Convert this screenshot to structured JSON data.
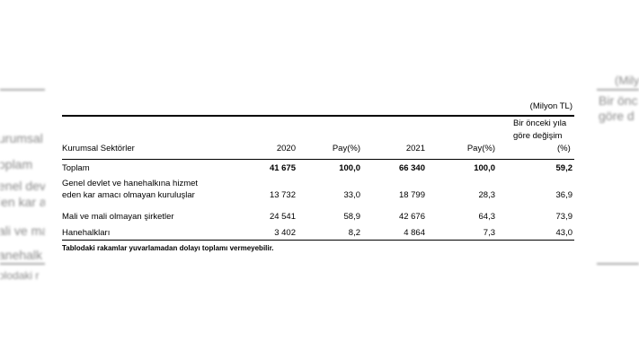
{
  "ghost_left": {
    "lines": [
      "urumsal",
      "oplam",
      "enel dev",
      "len kar a",
      "ali ve ma",
      "anehalk",
      "olodaki r"
    ]
  },
  "ghost_right": {
    "lines": [
      "(Milyon",
      "Bir önc",
      "göre d"
    ]
  },
  "table": {
    "unit": "(Milyon TL)",
    "headers": {
      "sector": "Kurumsal Sektörler",
      "y2020": "2020",
      "pay1": "Pay(%)",
      "y2021": "2021",
      "pay2": "Pay(%)",
      "change_line1": "Bir önceki yıla",
      "change_line2": "göre değişim",
      "change_line3": "(%)"
    },
    "rows": [
      {
        "name": "Toplam",
        "v2020": "41 675",
        "p2020": "100,0",
        "v2021": "66 340",
        "p2021": "100,0",
        "chg": "59,2"
      },
      {
        "name_line1": "Genel devlet ve hanehalkına hizmet",
        "name_line2": "eden kar amacı olmayan kuruluşlar",
        "v2020": "13 732",
        "p2020": "33,0",
        "v2021": "18 799",
        "p2021": "28,3",
        "chg": "36,9"
      },
      {
        "name": "Mali ve mali olmayan şirketler",
        "v2020": "24 541",
        "p2020": "58,9",
        "v2021": "42 676",
        "p2021": "64,3",
        "chg": "73,9"
      },
      {
        "name": "Hanehalkları",
        "v2020": "3 402",
        "p2020": "8,2",
        "v2021": "4 864",
        "p2021": "7,3",
        "chg": "43,0"
      }
    ],
    "footnote": "Tablodaki rakamlar yuvarlamadan dolayı toplamı vermeyebilir."
  }
}
